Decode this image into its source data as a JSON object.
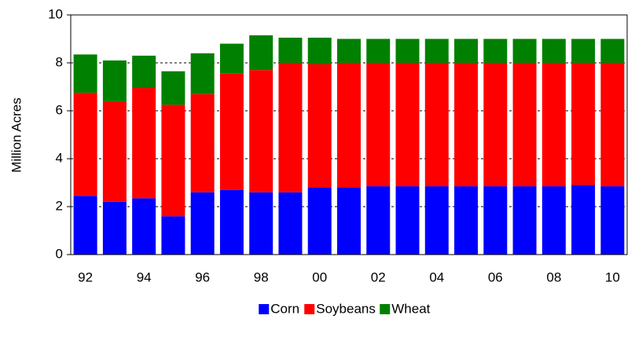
{
  "chart_data": {
    "type": "stacked_bar",
    "y_label": "Million Acres",
    "categories": [
      "92",
      null,
      "94",
      null,
      "96",
      null,
      "98",
      null,
      "00",
      null,
      "02",
      null,
      "04",
      null,
      "06",
      null,
      "08",
      null,
      "10"
    ],
    "series": [
      {
        "name": "Corn",
        "color": "#0000ff",
        "values": [
          2.45,
          2.2,
          2.35,
          1.6,
          2.6,
          2.7,
          2.6,
          2.6,
          2.8,
          2.8,
          2.85,
          2.85,
          2.85,
          2.85,
          2.85,
          2.85,
          2.85,
          2.9,
          2.85
        ]
      },
      {
        "name": "Soybeans",
        "color": "#ff0000",
        "values": [
          4.3,
          4.2,
          4.6,
          4.65,
          4.1,
          4.85,
          5.1,
          5.4,
          5.15,
          5.2,
          5.15,
          5.15,
          5.15,
          5.15,
          5.15,
          5.15,
          5.15,
          5.1,
          5.15
        ]
      },
      {
        "name": "Wheat",
        "color": "#008000",
        "values": [
          1.6,
          1.7,
          1.35,
          1.4,
          1.7,
          1.25,
          1.45,
          1.05,
          1.1,
          1.0,
          1.0,
          1.0,
          1.0,
          1.0,
          1.0,
          1.0,
          1.0,
          1.0,
          1.0
        ]
      }
    ],
    "ylim": [
      0,
      10
    ],
    "yticks": [
      0,
      2,
      4,
      6,
      8,
      10
    ],
    "grid": true,
    "legend": "bottom"
  }
}
